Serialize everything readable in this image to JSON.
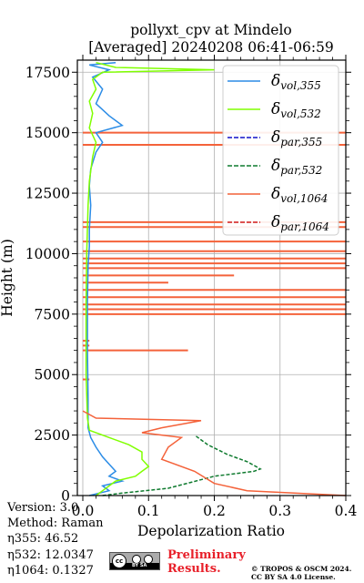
{
  "chart_data": {
    "type": "line",
    "title_line1": "pollyxt_cpv at Mindelo",
    "title_line2": "[Averaged] 20240208 06:41-06:59",
    "xlabel": "Depolarization Ratio",
    "ylabel": "Height (m)",
    "xlim": [
      0.0,
      0.4
    ],
    "ylim": [
      0,
      18000
    ],
    "xticks": [
      "0.0",
      "0.1",
      "0.2",
      "0.3",
      "0.4"
    ],
    "xtick_values": [
      0.0,
      0.1,
      0.2,
      0.3,
      0.4
    ],
    "yticks": [
      "0",
      "2500",
      "5000",
      "7500",
      "10000",
      "12500",
      "15000",
      "17500"
    ],
    "ytick_values": [
      0,
      2500,
      5000,
      7500,
      10000,
      12500,
      15000,
      17500
    ],
    "grid": true,
    "legend_position": "top-right",
    "legend": [
      {
        "label_base": "δ",
        "label_sub": "vol,355",
        "color": "#2b8ce6",
        "dash": "solid"
      },
      {
        "label_base": "δ",
        "label_sub": "vol,532",
        "color": "#80ff00",
        "dash": "solid"
      },
      {
        "label_base": "δ",
        "label_sub": "par,355",
        "color": "#1010c8",
        "dash": "dashed"
      },
      {
        "label_base": "δ",
        "label_sub": "par,532",
        "color": "#0e7a2e",
        "dash": "dashed"
      },
      {
        "label_base": "δ",
        "label_sub": "vol,1064",
        "color": "#f4623a",
        "dash": "solid"
      },
      {
        "label_base": "δ",
        "label_sub": "par,1064",
        "color": "#d01c1c",
        "dash": "dashed"
      }
    ],
    "series": [
      {
        "name": "δvol,355",
        "color": "#2b8ce6",
        "dash": "solid",
        "points": [
          [
            0.01,
            0
          ],
          [
            0.04,
            200
          ],
          [
            0.03,
            400
          ],
          [
            0.06,
            600
          ],
          [
            0.04,
            800
          ],
          [
            0.05,
            1000
          ],
          [
            0.04,
            1300
          ],
          [
            0.03,
            1600
          ],
          [
            0.02,
            2000
          ],
          [
            0.012,
            2400
          ],
          [
            0.008,
            2800
          ],
          [
            0.008,
            4000
          ],
          [
            0.007,
            6000
          ],
          [
            0.007,
            8000
          ],
          [
            0.008,
            9500
          ],
          [
            0.01,
            10300
          ],
          [
            0.01,
            11000
          ],
          [
            0.012,
            12000
          ],
          [
            0.01,
            12800
          ],
          [
            0.012,
            13500
          ],
          [
            0.02,
            14200
          ],
          [
            0.03,
            14600
          ],
          [
            0.02,
            15000
          ],
          [
            0.06,
            15300
          ],
          [
            0.04,
            15700
          ],
          [
            0.02,
            16200
          ],
          [
            0.03,
            16800
          ],
          [
            0.015,
            17300
          ],
          [
            0.04,
            17600
          ],
          [
            0.01,
            17800
          ],
          [
            0.05,
            17900
          ]
        ]
      },
      {
        "name": "δvol,532",
        "color": "#80ff00",
        "dash": "solid",
        "points": [
          [
            0.02,
            0
          ],
          [
            0.03,
            200
          ],
          [
            0.05,
            600
          ],
          [
            0.08,
            800
          ],
          [
            0.09,
            1000
          ],
          [
            0.1,
            1200
          ],
          [
            0.09,
            1500
          ],
          [
            0.09,
            1800
          ],
          [
            0.07,
            2100
          ],
          [
            0.04,
            2400
          ],
          [
            0.01,
            2700
          ],
          [
            0.007,
            3200
          ],
          [
            0.005,
            5000
          ],
          [
            0.005,
            8000
          ],
          [
            0.006,
            10000
          ],
          [
            0.008,
            12000
          ],
          [
            0.01,
            13000
          ],
          [
            0.015,
            14000
          ],
          [
            0.02,
            14600
          ],
          [
            0.01,
            15200
          ],
          [
            0.015,
            15800
          ],
          [
            0.01,
            16300
          ],
          [
            0.02,
            16800
          ],
          [
            0.015,
            17200
          ],
          [
            0.03,
            17500
          ],
          [
            0.2,
            17600
          ],
          [
            0.05,
            17700
          ],
          [
            0.02,
            17900
          ]
        ]
      },
      {
        "name": "δpar,532",
        "color": "#0e7a2e",
        "dash": "dashed",
        "points": [
          [
            0.03,
            0
          ],
          [
            0.06,
            100
          ],
          [
            0.13,
            300
          ],
          [
            0.2,
            800
          ],
          [
            0.23,
            900
          ],
          [
            0.26,
            1000
          ],
          [
            0.27,
            1100
          ],
          [
            0.25,
            1400
          ],
          [
            0.22,
            1700
          ],
          [
            0.19,
            2100
          ],
          [
            0.17,
            2500
          ]
        ]
      },
      {
        "name": "δvol,1064",
        "color": "#f4623a",
        "dash": "solid",
        "points": [
          [
            0.4,
            0
          ],
          [
            0.25,
            200
          ],
          [
            0.2,
            500
          ],
          [
            0.17,
            1000
          ],
          [
            0.12,
            1500
          ],
          [
            0.13,
            2000
          ],
          [
            0.15,
            2400
          ],
          [
            0.09,
            2600
          ],
          [
            0.12,
            2800
          ],
          [
            0.18,
            3100
          ],
          [
            0.02,
            3200
          ],
          [
            0.0,
            3500
          ]
        ]
      }
    ],
    "horizontal_spikes_1064": [
      {
        "y": 4800,
        "x": 0.01
      },
      {
        "y": 6000,
        "x": 0.16
      },
      {
        "y": 6200,
        "x": 0.01
      },
      {
        "y": 6400,
        "x": 0.01
      },
      {
        "y": 7500,
        "x": 0.4
      },
      {
        "y": 7700,
        "x": 0.4
      },
      {
        "y": 7900,
        "x": 0.4
      },
      {
        "y": 8200,
        "x": 0.4
      },
      {
        "y": 8500,
        "x": 0.4
      },
      {
        "y": 8800,
        "x": 0.13
      },
      {
        "y": 9100,
        "x": 0.23
      },
      {
        "y": 9400,
        "x": 0.4
      },
      {
        "y": 9600,
        "x": 0.4
      },
      {
        "y": 9800,
        "x": 0.4
      },
      {
        "y": 10100,
        "x": 0.4
      },
      {
        "y": 10500,
        "x": 0.4
      },
      {
        "y": 11100,
        "x": 0.4
      },
      {
        "y": 11300,
        "x": 0.4
      },
      {
        "y": 14500,
        "x": 0.4
      },
      {
        "y": 15000,
        "x": 0.4
      }
    ]
  },
  "info": {
    "version": "Version: 3.0",
    "method": "Method: Raman",
    "eta355": "η355:  46.52",
    "eta532": "η532: 12.0347",
    "eta1064": "η1064: 0.1327"
  },
  "footer": {
    "preliminary_line1": "Preliminary",
    "preliminary_line2": "Results.",
    "copyright_line1": "© TROPOS & OSCM 2024.",
    "copyright_line2": "CC BY SA 4.0 License.",
    "cc_badge_text": "cc",
    "cc_license": "BY  SA"
  }
}
